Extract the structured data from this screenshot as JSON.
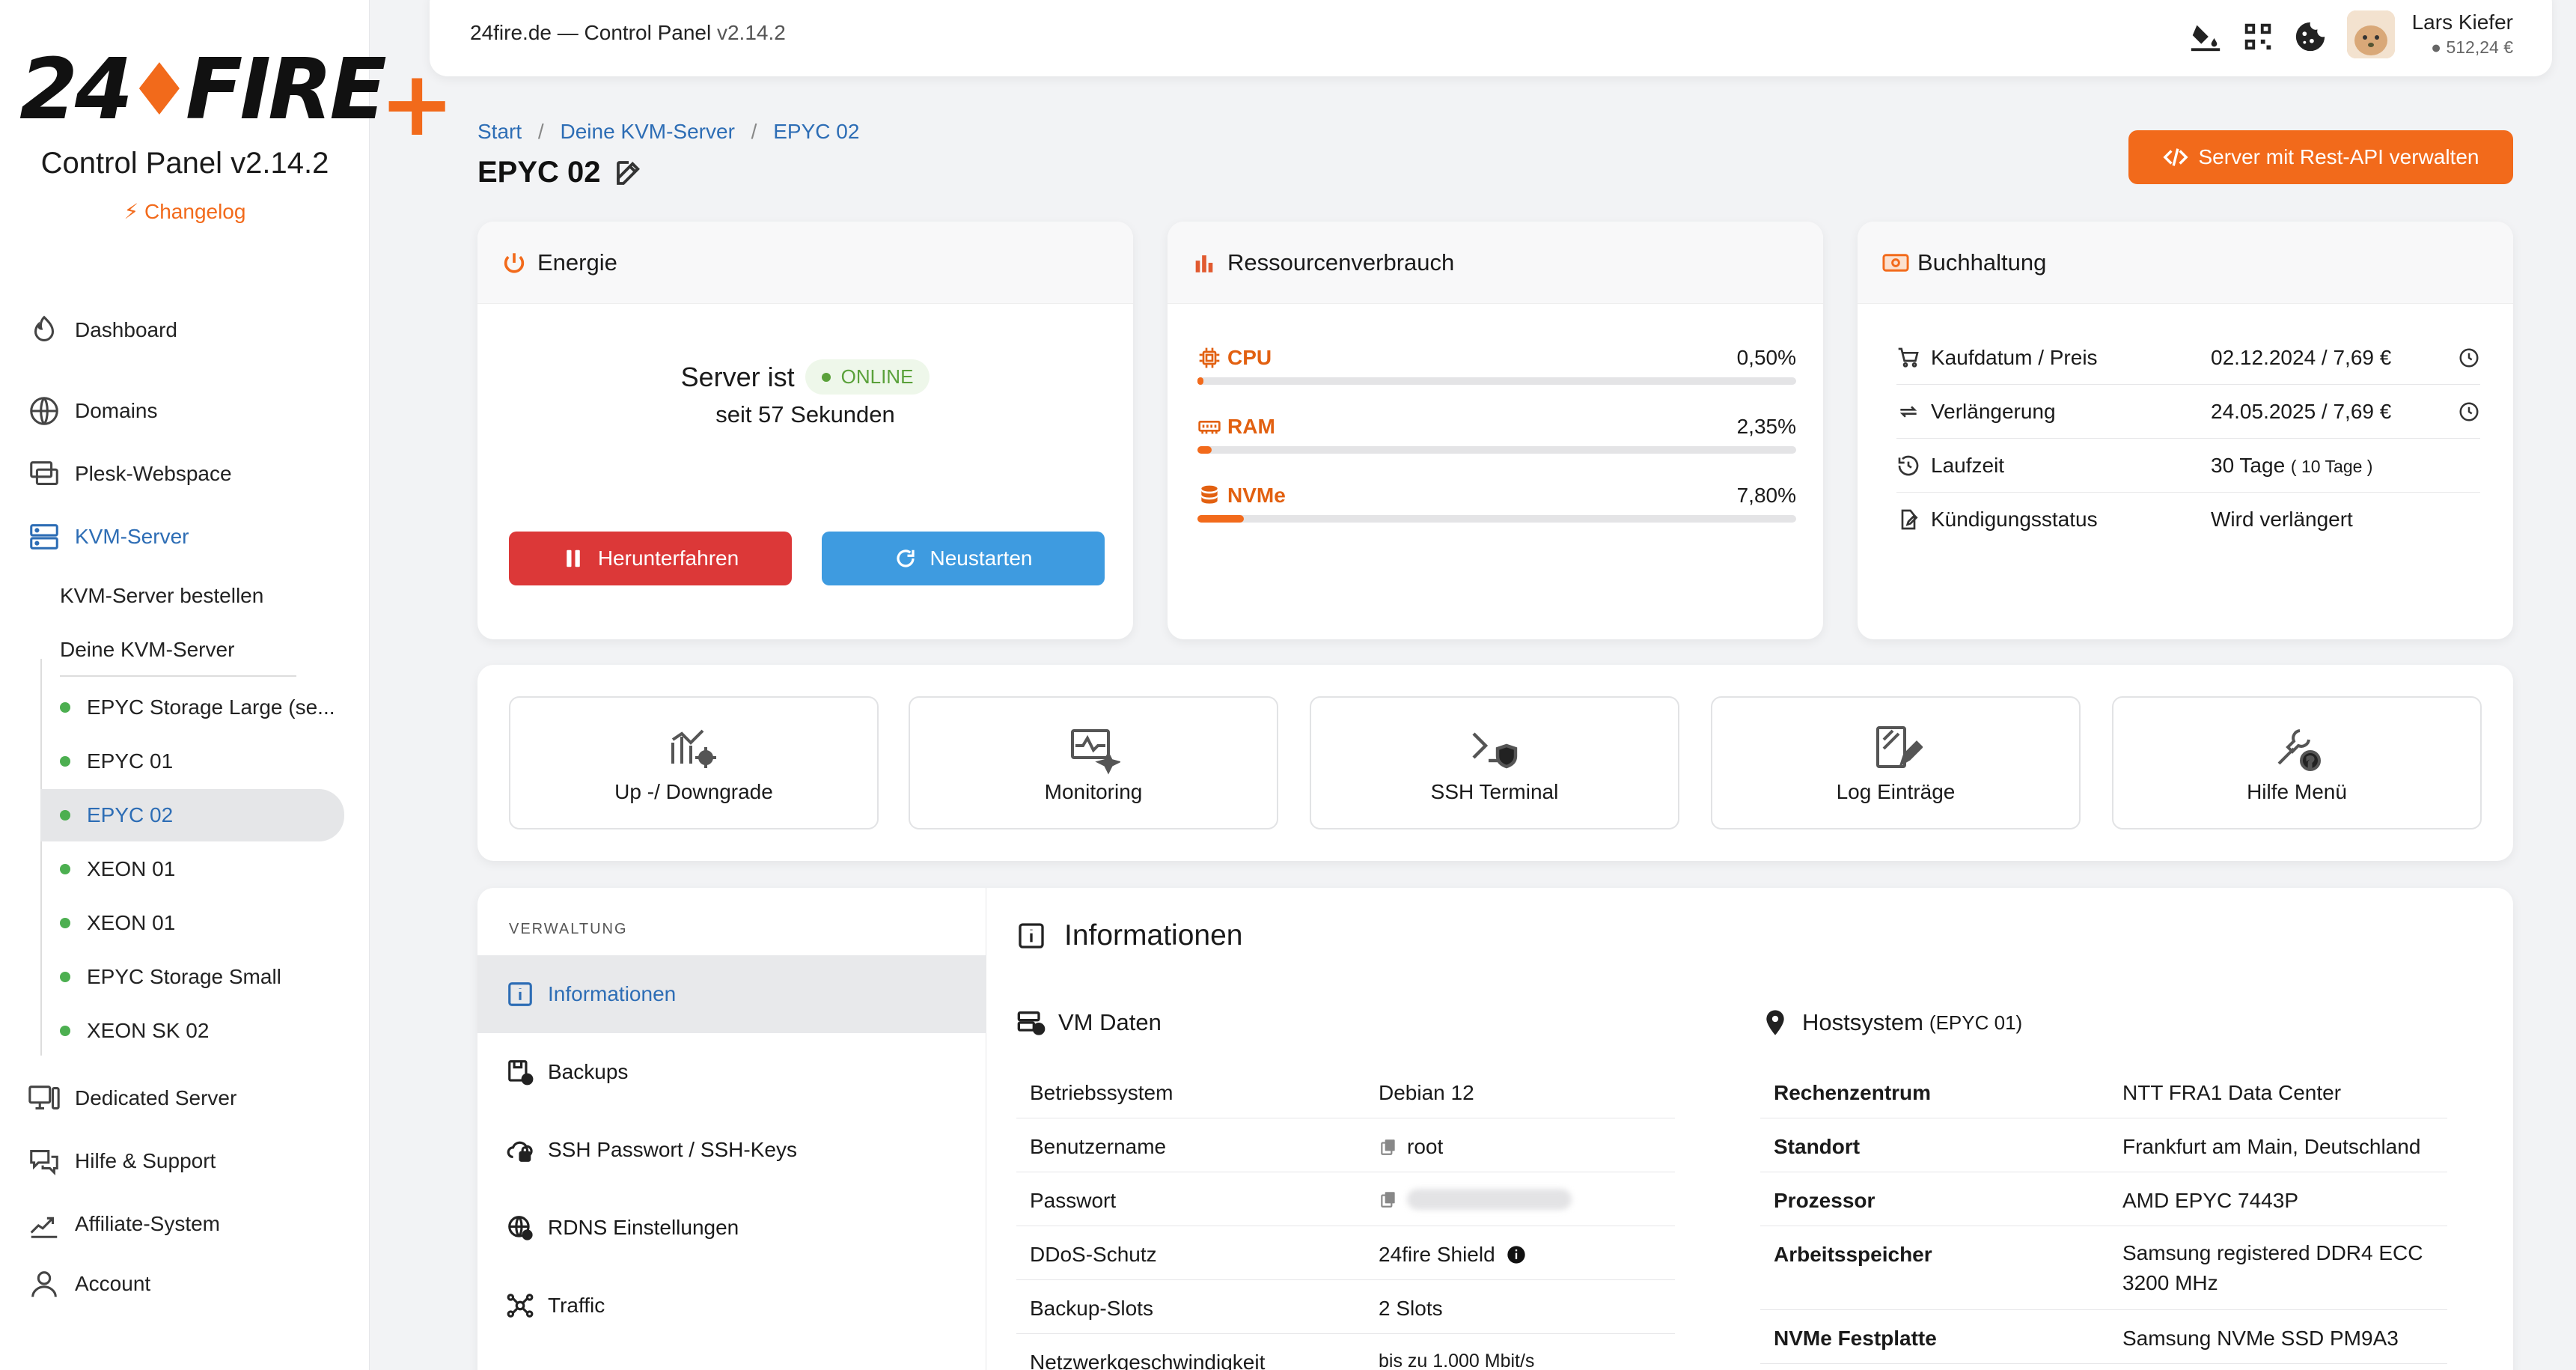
{
  "sidebar": {
    "logo_text_a": "24",
    "logo_text_b": "FIRE",
    "logo_plus": "+",
    "title": "Control Panel v2.14.2",
    "changelog": "Changelog",
    "nav": [
      {
        "label": "Dashboard",
        "icon": "dashboard-icon"
      },
      {
        "label": "Domains",
        "icon": "globe-icon"
      },
      {
        "label": "Plesk-Webspace",
        "icon": "webspace-icon"
      },
      {
        "label": "KVM-Server",
        "icon": "server-icon"
      },
      {
        "label": "Dedicated Server",
        "icon": "dedicated-icon"
      },
      {
        "label": "Hilfe & Support",
        "icon": "support-icon"
      },
      {
        "label": "Affiliate-System",
        "icon": "affiliate-icon"
      },
      {
        "label": "Account",
        "icon": "account-icon"
      }
    ],
    "kvm_sub": [
      "KVM-Server bestellen",
      "Deine KVM-Server"
    ],
    "servers": [
      "EPYC Storage Large (se...",
      "EPYC 01",
      "EPYC 02",
      "XEON 01",
      "XEON 01",
      "EPYC Storage Small",
      "XEON SK 02"
    ],
    "selected_server": "EPYC 02"
  },
  "topbar": {
    "title": "24fire.de — Control Panel",
    "version": "v2.14.2",
    "user_name": "Lars Kiefer",
    "balance": "512,24 €"
  },
  "breadcrumb": [
    "Start",
    "Deine KVM-Server",
    "EPYC 02"
  ],
  "page_title": "EPYC 02",
  "api_button": "Server mit Rest-API verwalten",
  "energie": {
    "title": "Energie",
    "status_prefix": "Server ist",
    "status": "ONLINE",
    "since": "seit 57 Sekunden",
    "shutdown": "Herunterfahren",
    "restart": "Neustarten"
  },
  "resources": {
    "title": "Ressourcenverbrauch",
    "items": [
      {
        "label": "CPU",
        "value": "0,50%",
        "percent": 0.5
      },
      {
        "label": "RAM",
        "value": "2,35%",
        "percent": 2.35
      },
      {
        "label": "NVMe",
        "value": "7,80%",
        "percent": 7.8
      }
    ]
  },
  "accounting": {
    "title": "Buchhaltung",
    "rows": [
      {
        "label": "Kaufdatum / Preis",
        "value": "02.12.2024 / 7,69 €"
      },
      {
        "label": "Verlängerung",
        "value": "24.05.2025 / 7,69 €"
      },
      {
        "label": "Laufzeit",
        "value": "30 Tage",
        "extra": "( 10 Tage )"
      },
      {
        "label": "Kündigungsstatus",
        "value": "Wird verlängert"
      }
    ]
  },
  "quick_actions": [
    "Up -/ Downgrade",
    "Monitoring",
    "SSH Terminal",
    "Log Einträge",
    "Hilfe Menü"
  ],
  "manage": {
    "caption": "VERWALTUNG",
    "items": [
      "Informationen",
      "Backups",
      "SSH Passwort / SSH-Keys",
      "RDNS Einstellungen",
      "Traffic"
    ]
  },
  "info": {
    "title": "Informationen",
    "vm_title": "VM Daten",
    "vm": [
      {
        "k": "Betriebssystem",
        "v": "Debian 12"
      },
      {
        "k": "Benutzername",
        "v": "root"
      },
      {
        "k": "Passwort",
        "v": ""
      },
      {
        "k": "DDoS-Schutz",
        "v": "24fire Shield"
      },
      {
        "k": "Backup-Slots",
        "v": "2 Slots"
      },
      {
        "k": "Netzwerkgeschwindigkeit",
        "v": "bis zu 1.000 Mbit/s"
      }
    ],
    "host_title": "Hostsystem",
    "host_sub": "(EPYC 01)",
    "host": [
      {
        "k": "Rechenzentrum",
        "v": "NTT FRA1 Data Center"
      },
      {
        "k": "Standort",
        "v": "Frankfurt am Main, Deutschland"
      },
      {
        "k": "Prozessor",
        "v": "AMD EPYC 7443P"
      },
      {
        "k": "Arbeitsspeicher",
        "v": "Samsung registered DDR4 ECC",
        "v2": "3200 MHz"
      },
      {
        "k": "NVMe Festplatte",
        "v": "Samsung NVMe SSD PM9A3"
      }
    ]
  }
}
